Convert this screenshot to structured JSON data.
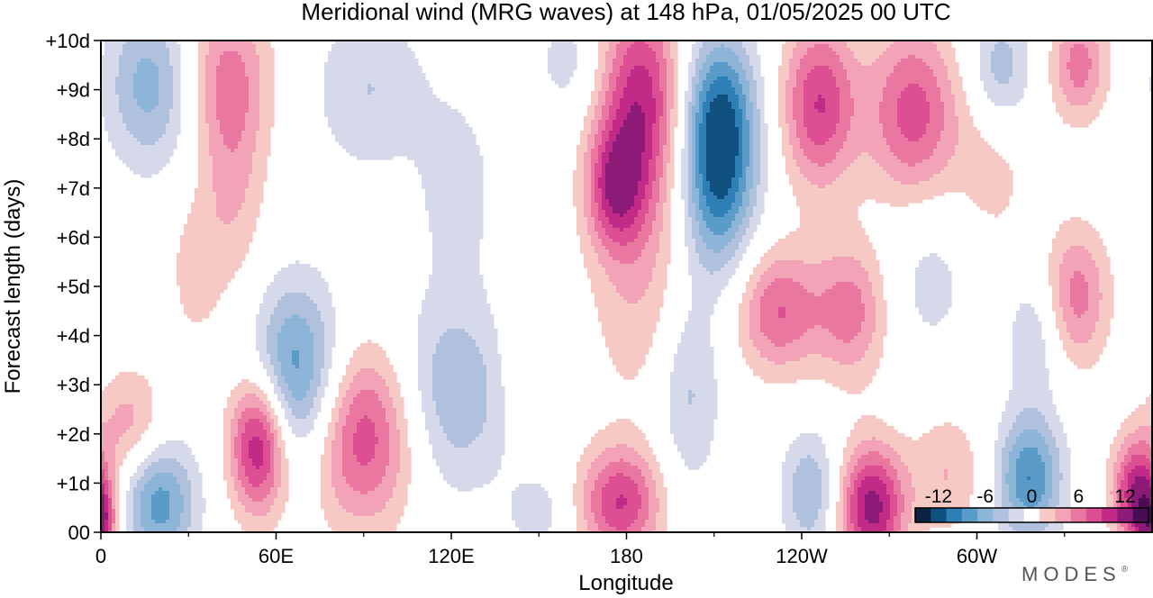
{
  "chart_data": {
    "type": "heatmap",
    "title": "Meridional wind (MRG waves) at  148 hPa,  01/05/2025  00 UTC",
    "xlabel": "Longitude",
    "ylabel": "Forecast length (days)",
    "x_ticks": [
      {
        "lon": 0,
        "label": "0"
      },
      {
        "lon": 60,
        "label": "60E"
      },
      {
        "lon": 120,
        "label": "120E"
      },
      {
        "lon": 180,
        "label": "180"
      },
      {
        "lon": 240,
        "label": "120W"
      },
      {
        "lon": 300,
        "label": "60W"
      }
    ],
    "x_minor_ticks": [
      30,
      90,
      150,
      210,
      270,
      330
    ],
    "xlim": [
      0,
      360
    ],
    "y_ticks": [
      {
        "day": 0,
        "label": "00"
      },
      {
        "day": 1,
        "label": "+1d"
      },
      {
        "day": 2,
        "label": "+2d"
      },
      {
        "day": 3,
        "label": "+3d"
      },
      {
        "day": 4,
        "label": "+4d"
      },
      {
        "day": 5,
        "label": "+5d"
      },
      {
        "day": 6,
        "label": "+6d"
      },
      {
        "day": 7,
        "label": "+7d"
      },
      {
        "day": 8,
        "label": "+8d"
      },
      {
        "day": 9,
        "label": "+9d"
      },
      {
        "day": 10,
        "label": "+10d"
      }
    ],
    "ylim": [
      0,
      10
    ],
    "colorbar": {
      "labels": [
        "-12",
        "-6",
        "0",
        "6",
        "12"
      ],
      "levels": [
        -15,
        -12,
        -10,
        -8,
        -6,
        -4,
        -2,
        2,
        4,
        6,
        8,
        10,
        12,
        15
      ],
      "colors": [
        "#0b2340",
        "#10507e",
        "#2e7fb5",
        "#5a9bc8",
        "#8db5d8",
        "#b0c1dd",
        "#d6d9e9",
        "#ffffff",
        "#f7c9c5",
        "#f2a3b7",
        "#e9779f",
        "#dc4f93",
        "#c12a86",
        "#8c1a77",
        "#4b0c54"
      ]
    },
    "features": [
      {
        "lon": 20,
        "day": 0.6,
        "value": -9,
        "sx": 9,
        "sy": 0.9
      },
      {
        "lon": 10,
        "day": 2.2,
        "value": 5,
        "sx": 8,
        "sy": 0.8
      },
      {
        "lon": 0,
        "day": 0.2,
        "value": 9,
        "sx": 4,
        "sy": 0.5
      },
      {
        "lon": 17,
        "day": 9.1,
        "value": -7,
        "sx": 11,
        "sy": 1.2
      },
      {
        "lon": 43,
        "day": 9.3,
        "value": 6,
        "sx": 11,
        "sy": 1.2
      },
      {
        "lon": 45,
        "day": 7,
        "value": 4,
        "sx": 8,
        "sy": 1.6
      },
      {
        "lon": 32,
        "day": 5.3,
        "value": 3,
        "sx": 6,
        "sy": 1.0
      },
      {
        "lon": 54,
        "day": 1.8,
        "value": 13,
        "sx": 7,
        "sy": 1.0
      },
      {
        "lon": 67,
        "day": 3.2,
        "value": -10,
        "sx": 11,
        "sy": 1.3
      },
      {
        "lon": 90,
        "day": 2,
        "value": 10,
        "sx": 13,
        "sy": 1.3
      },
      {
        "lon": 92,
        "day": 9,
        "value": -4,
        "sx": 14,
        "sy": 1.2
      },
      {
        "lon": 120,
        "day": 2.8,
        "value": -6,
        "sx": 15,
        "sy": 1.4
      },
      {
        "lon": 122,
        "day": 7,
        "value": -3,
        "sx": 10,
        "sy": 1.4
      },
      {
        "lon": 146,
        "day": 3.5,
        "value": 3,
        "sx": 6,
        "sy": 1.0
      },
      {
        "lon": 178,
        "day": 0.6,
        "value": 10,
        "sx": 10,
        "sy": 0.8
      },
      {
        "lon": 185,
        "day": 8.8,
        "value": 11,
        "sx": 10,
        "sy": 1.5
      },
      {
        "lon": 176,
        "day": 7,
        "value": 9,
        "sx": 7,
        "sy": 0.9
      },
      {
        "lon": 186,
        "day": 5,
        "value": 4,
        "sx": 13,
        "sy": 1.8
      },
      {
        "lon": 212,
        "day": 8.3,
        "value": -13,
        "sx": 9,
        "sy": 1.3
      },
      {
        "lon": 211,
        "day": 6.5,
        "value": -6,
        "sx": 9,
        "sy": 1.2
      },
      {
        "lon": 201,
        "day": 3,
        "value": -5,
        "sx": 8,
        "sy": 1.5
      },
      {
        "lon": 246,
        "day": 8.7,
        "value": 10,
        "sx": 9,
        "sy": 1.2
      },
      {
        "lon": 232,
        "day": 4.5,
        "value": 8,
        "sx": 10,
        "sy": 0.9
      },
      {
        "lon": 243,
        "day": 0.8,
        "value": -6,
        "sx": 7,
        "sy": 0.9
      },
      {
        "lon": 264,
        "day": 0.5,
        "value": 13,
        "sx": 8,
        "sy": 0.9
      },
      {
        "lon": 278,
        "day": 8.5,
        "value": 9,
        "sx": 11,
        "sy": 1.3
      },
      {
        "lon": 257,
        "day": 4.5,
        "value": 7,
        "sx": 9,
        "sy": 1.0
      },
      {
        "lon": 284,
        "day": 5.3,
        "value": -3,
        "sx": 12,
        "sy": 1.3
      },
      {
        "lon": 290,
        "day": 1.2,
        "value": 4,
        "sx": 9,
        "sy": 0.9
      },
      {
        "lon": 318,
        "day": 1.1,
        "value": -10,
        "sx": 8,
        "sy": 0.9
      },
      {
        "lon": 334,
        "day": 4.8,
        "value": 7,
        "sx": 8,
        "sy": 1.0
      },
      {
        "lon": 335,
        "day": 9.5,
        "value": 7,
        "sx": 7,
        "sy": 0.8
      },
      {
        "lon": 308,
        "day": 9.4,
        "value": -6,
        "sx": 8,
        "sy": 0.9
      },
      {
        "lon": 355,
        "day": 0.8,
        "value": 12,
        "sx": 6,
        "sy": 0.8
      },
      {
        "lon": 320,
        "day": 4,
        "value": -4,
        "sx": 7,
        "sy": 1.0
      },
      {
        "lon": 150,
        "day": 0.4,
        "value": -3,
        "sx": 8,
        "sy": 0.6
      },
      {
        "lon": 305,
        "day": 7.5,
        "value": 3,
        "sx": 10,
        "sy": 1.5
      },
      {
        "lon": 160,
        "day": 9.6,
        "value": -3,
        "sx": 8,
        "sy": 0.8
      }
    ]
  },
  "logo": "MODES",
  "logo_mark": "®"
}
